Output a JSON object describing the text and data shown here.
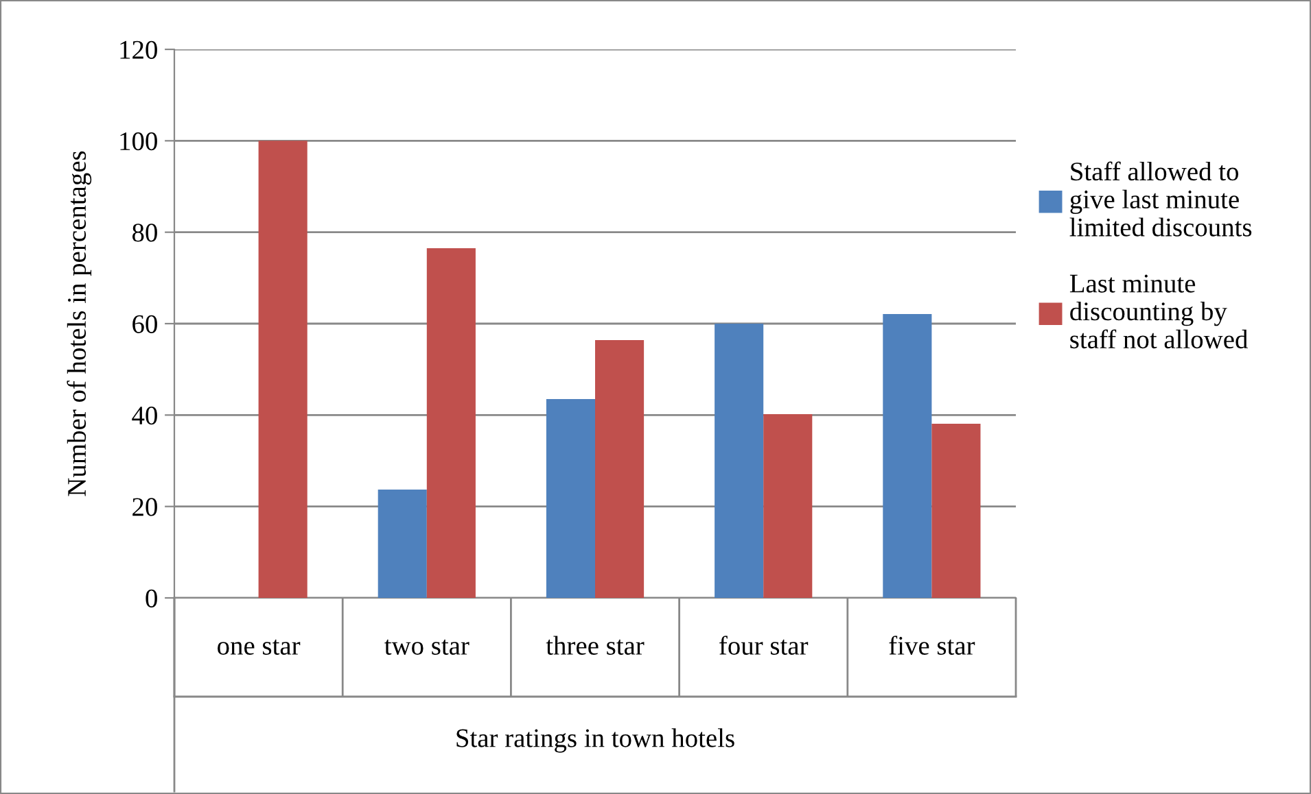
{
  "chart_data": {
    "type": "bar",
    "xlabel": "Star ratings in town hotels",
    "ylabel": "Number of hotels in percentages",
    "categories": [
      "one star",
      "two star",
      "three star",
      "four star",
      "five star"
    ],
    "series": [
      {
        "name": "Staff allowed to\ngive last minute\nlimited discounts",
        "color": "#4f81bd",
        "values": [
          0,
          23.7,
          43.5,
          60,
          62.1
        ]
      },
      {
        "name": "Last minute\ndiscounting by\nstaff not allowed",
        "color": "#c0504d",
        "values": [
          100,
          76.5,
          56.4,
          40.2,
          38.1
        ]
      }
    ],
    "ylim": [
      0,
      120
    ],
    "yticks": [
      0,
      20,
      40,
      60,
      80,
      100,
      120
    ],
    "grid": "y",
    "legend": "right"
  }
}
